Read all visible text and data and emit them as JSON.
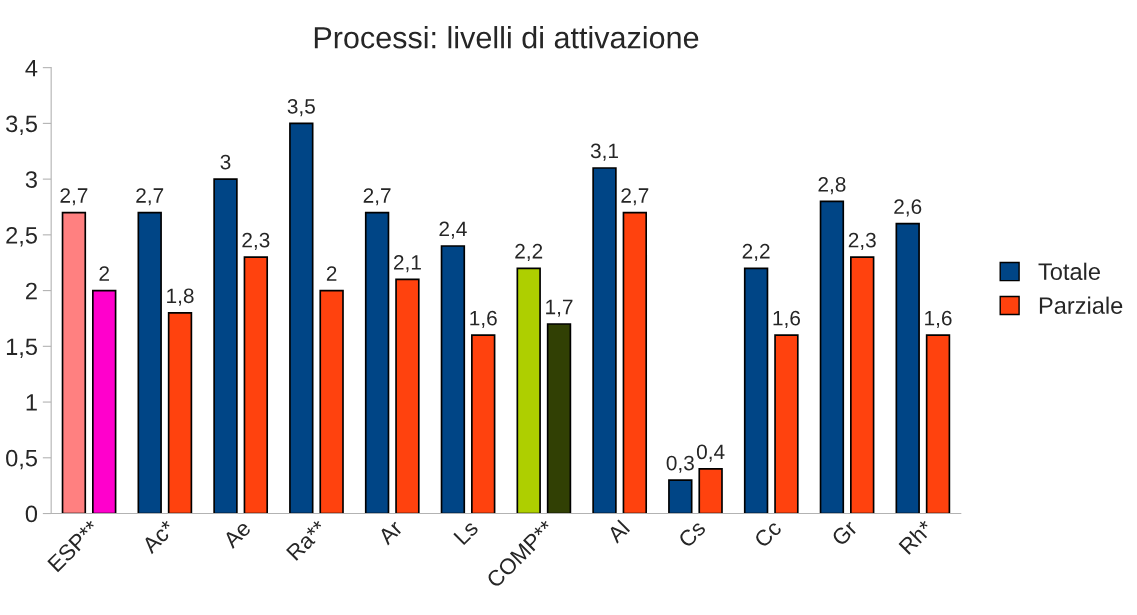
{
  "chart_data": {
    "type": "bar",
    "title": "Processi: livelli di attivazione",
    "categories": [
      "ESP**",
      "Ac*",
      "Ae",
      "Ra**",
      "Ar",
      "Ls",
      "COMP**",
      "Al",
      "Cs",
      "Cc",
      "Gr",
      "Rh*"
    ],
    "series": [
      {
        "name": "Totale",
        "color": "#004586",
        "colors": [
          "#ff8080",
          "#004586",
          "#004586",
          "#004586",
          "#004586",
          "#004586",
          "#aecf00",
          "#004586",
          "#004586",
          "#004586",
          "#004586",
          "#004586"
        ],
        "values": [
          2.7,
          2.7,
          3,
          3.5,
          2.7,
          2.4,
          2.2,
          3.1,
          0.3,
          2.2,
          2.8,
          2.6
        ],
        "value_labels": [
          "2,7",
          "2,7",
          "3",
          "3,5",
          "2,7",
          "2,4",
          "2,2",
          "3,1",
          "0,3",
          "2,2",
          "2,8",
          "2,6"
        ]
      },
      {
        "name": "Parziale",
        "color": "#ff420e",
        "colors": [
          "#ff00cc",
          "#ff420e",
          "#ff420e",
          "#ff420e",
          "#ff420e",
          "#ff420e",
          "#314004",
          "#ff420e",
          "#ff420e",
          "#ff420e",
          "#ff420e",
          "#ff420e"
        ],
        "values": [
          2,
          1.8,
          2.3,
          2,
          2.1,
          1.6,
          1.7,
          2.7,
          0.4,
          1.6,
          2.3,
          1.6
        ],
        "value_labels": [
          "2",
          "1,8",
          "2,3",
          "2",
          "2,1",
          "1,6",
          "1,7",
          "2,7",
          "0,4",
          "1,6",
          "2,3",
          "1,6"
        ]
      }
    ],
    "ylim": [
      0,
      4
    ],
    "yticks": [
      0,
      {
        "value": 0.5,
        "label": "0,5"
      },
      1,
      {
        "value": 1.5,
        "label": "1,5"
      },
      2,
      {
        "value": 2.5,
        "label": "2,5"
      },
      3,
      {
        "value": 3.5,
        "label": "3,5"
      },
      4
    ],
    "grid": false,
    "legend": "right"
  }
}
